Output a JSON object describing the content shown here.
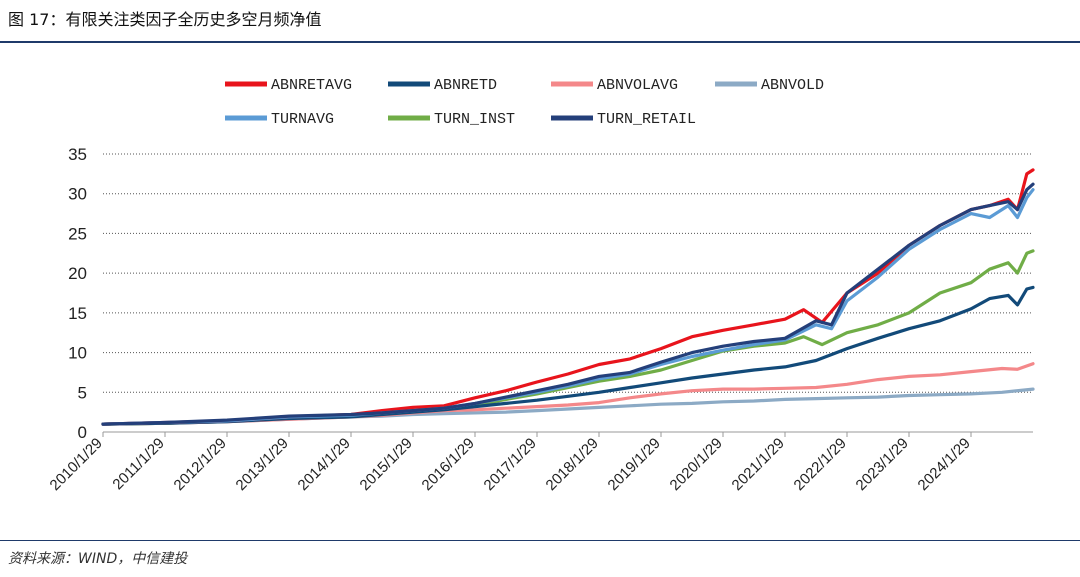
{
  "page": {
    "title": "图 17：有限关注类因子全历史多空月频净值",
    "source": "资料来源：WIND，中信建投"
  },
  "chart_data": {
    "type": "line",
    "title": "",
    "xlabel": "",
    "ylabel": "",
    "ylim": [
      0,
      35
    ],
    "yticks": [
      0,
      5,
      10,
      15,
      20,
      25,
      30,
      35
    ],
    "xlim": [
      2010.0,
      2025.0
    ],
    "x_ticks": [
      {
        "label": "2010/1/29",
        "x": 2010.0
      },
      {
        "label": "2011/1/29",
        "x": 2011.0
      },
      {
        "label": "2012/1/29",
        "x": 2012.0
      },
      {
        "label": "2013/1/29",
        "x": 2013.0
      },
      {
        "label": "2014/1/29",
        "x": 2014.0
      },
      {
        "label": "2015/1/29",
        "x": 2015.0
      },
      {
        "label": "2016/1/29",
        "x": 2016.0
      },
      {
        "label": "2017/1/29",
        "x": 2017.0
      },
      {
        "label": "2018/1/29",
        "x": 2018.0
      },
      {
        "label": "2019/1/29",
        "x": 2019.0
      },
      {
        "label": "2020/1/29",
        "x": 2020.0
      },
      {
        "label": "2021/1/29",
        "x": 2021.0
      },
      {
        "label": "2022/1/29",
        "x": 2022.0
      },
      {
        "label": "2023/1/29",
        "x": 2023.0
      },
      {
        "label": "2024/1/29",
        "x": 2024.0
      }
    ],
    "grid": "horizontal-dotted",
    "legend_position": "top",
    "series": [
      {
        "name": "ABNRETAVG",
        "color": "#e8141c",
        "points": [
          [
            2010.0,
            1.0
          ],
          [
            2011.0,
            1.2
          ],
          [
            2012.0,
            1.4
          ],
          [
            2013.0,
            1.9
          ],
          [
            2014.0,
            2.2
          ],
          [
            2014.5,
            2.7
          ],
          [
            2015.0,
            3.1
          ],
          [
            2015.5,
            3.3
          ],
          [
            2016.0,
            4.3
          ],
          [
            2016.5,
            5.2
          ],
          [
            2017.0,
            6.3
          ],
          [
            2017.5,
            7.3
          ],
          [
            2018.0,
            8.5
          ],
          [
            2018.5,
            9.2
          ],
          [
            2019.0,
            10.5
          ],
          [
            2019.5,
            12.0
          ],
          [
            2020.0,
            12.8
          ],
          [
            2020.5,
            13.5
          ],
          [
            2021.0,
            14.2
          ],
          [
            2021.3,
            15.4
          ],
          [
            2021.6,
            13.8
          ],
          [
            2022.0,
            17.5
          ],
          [
            2022.5,
            20.0
          ],
          [
            2023.0,
            23.5
          ],
          [
            2023.5,
            26.0
          ],
          [
            2024.0,
            28.0
          ],
          [
            2024.3,
            28.5
          ],
          [
            2024.6,
            29.3
          ],
          [
            2024.75,
            28.0
          ],
          [
            2024.9,
            32.5
          ],
          [
            2025.0,
            33.0
          ]
        ]
      },
      {
        "name": "ABNRETD",
        "color": "#124a79",
        "points": [
          [
            2010.0,
            1.0
          ],
          [
            2011.0,
            1.1
          ],
          [
            2012.0,
            1.3
          ],
          [
            2013.0,
            1.7
          ],
          [
            2014.0,
            1.9
          ],
          [
            2014.5,
            2.2
          ],
          [
            2015.0,
            2.5
          ],
          [
            2015.5,
            2.8
          ],
          [
            2016.0,
            3.2
          ],
          [
            2016.5,
            3.6
          ],
          [
            2017.0,
            4.0
          ],
          [
            2017.5,
            4.5
          ],
          [
            2018.0,
            5.0
          ],
          [
            2018.5,
            5.6
          ],
          [
            2019.0,
            6.2
          ],
          [
            2019.5,
            6.8
          ],
          [
            2020.0,
            7.3
          ],
          [
            2020.5,
            7.8
          ],
          [
            2021.0,
            8.2
          ],
          [
            2021.5,
            9.0
          ],
          [
            2022.0,
            10.5
          ],
          [
            2022.5,
            11.8
          ],
          [
            2023.0,
            13.0
          ],
          [
            2023.5,
            14.0
          ],
          [
            2024.0,
            15.5
          ],
          [
            2024.3,
            16.8
          ],
          [
            2024.6,
            17.2
          ],
          [
            2024.75,
            16.0
          ],
          [
            2024.9,
            18.0
          ],
          [
            2025.0,
            18.2
          ]
        ]
      },
      {
        "name": "ABNVOLAVG",
        "color": "#f4888a",
        "points": [
          [
            2010.0,
            1.0
          ],
          [
            2011.0,
            1.1
          ],
          [
            2012.0,
            1.3
          ],
          [
            2013.0,
            1.6
          ],
          [
            2014.0,
            1.9
          ],
          [
            2014.5,
            2.1
          ],
          [
            2015.0,
            2.4
          ],
          [
            2015.5,
            2.7
          ],
          [
            2016.0,
            2.8
          ],
          [
            2016.5,
            3.0
          ],
          [
            2017.0,
            3.2
          ],
          [
            2017.5,
            3.4
          ],
          [
            2018.0,
            3.7
          ],
          [
            2018.5,
            4.3
          ],
          [
            2019.0,
            4.8
          ],
          [
            2019.5,
            5.2
          ],
          [
            2020.0,
            5.4
          ],
          [
            2020.5,
            5.4
          ],
          [
            2021.0,
            5.5
          ],
          [
            2021.5,
            5.6
          ],
          [
            2022.0,
            6.0
          ],
          [
            2022.5,
            6.6
          ],
          [
            2023.0,
            7.0
          ],
          [
            2023.5,
            7.2
          ],
          [
            2024.0,
            7.6
          ],
          [
            2024.5,
            8.0
          ],
          [
            2024.75,
            7.9
          ],
          [
            2025.0,
            8.6
          ]
        ]
      },
      {
        "name": "ABNVOLD",
        "color": "#8caac5",
        "points": [
          [
            2010.0,
            1.0
          ],
          [
            2011.0,
            1.1
          ],
          [
            2012.0,
            1.3
          ],
          [
            2013.0,
            1.6
          ],
          [
            2014.0,
            1.9
          ],
          [
            2014.5,
            2.0
          ],
          [
            2015.0,
            2.2
          ],
          [
            2015.5,
            2.3
          ],
          [
            2016.0,
            2.4
          ],
          [
            2016.5,
            2.5
          ],
          [
            2017.0,
            2.7
          ],
          [
            2017.5,
            2.9
          ],
          [
            2018.0,
            3.1
          ],
          [
            2018.5,
            3.3
          ],
          [
            2019.0,
            3.5
          ],
          [
            2019.5,
            3.6
          ],
          [
            2020.0,
            3.8
          ],
          [
            2020.5,
            3.9
          ],
          [
            2021.0,
            4.1
          ],
          [
            2021.5,
            4.2
          ],
          [
            2022.0,
            4.3
          ],
          [
            2022.5,
            4.4
          ],
          [
            2023.0,
            4.6
          ],
          [
            2023.5,
            4.7
          ],
          [
            2024.0,
            4.8
          ],
          [
            2024.5,
            5.0
          ],
          [
            2025.0,
            5.4
          ]
        ]
      },
      {
        "name": "TURNAVG",
        "color": "#5b9bd5",
        "points": [
          [
            2010.0,
            1.0
          ],
          [
            2011.0,
            1.2
          ],
          [
            2012.0,
            1.4
          ],
          [
            2013.0,
            1.9
          ],
          [
            2014.0,
            2.1
          ],
          [
            2014.5,
            2.4
          ],
          [
            2015.0,
            2.7
          ],
          [
            2015.5,
            3.0
          ],
          [
            2016.0,
            3.6
          ],
          [
            2016.5,
            4.3
          ],
          [
            2017.0,
            5.0
          ],
          [
            2017.5,
            5.8
          ],
          [
            2018.0,
            6.7
          ],
          [
            2018.5,
            7.3
          ],
          [
            2019.0,
            8.5
          ],
          [
            2019.5,
            9.5
          ],
          [
            2020.0,
            10.3
          ],
          [
            2020.5,
            11.0
          ],
          [
            2021.0,
            11.6
          ],
          [
            2021.5,
            13.5
          ],
          [
            2021.75,
            13.0
          ],
          [
            2022.0,
            16.5
          ],
          [
            2022.5,
            19.5
          ],
          [
            2023.0,
            23.0
          ],
          [
            2023.5,
            25.5
          ],
          [
            2024.0,
            27.5
          ],
          [
            2024.3,
            27.0
          ],
          [
            2024.6,
            28.5
          ],
          [
            2024.75,
            27.0
          ],
          [
            2024.9,
            29.5
          ],
          [
            2025.0,
            30.5
          ]
        ]
      },
      {
        "name": "TURN_INST",
        "color": "#70ad47",
        "points": [
          [
            2010.0,
            1.0
          ],
          [
            2011.0,
            1.1
          ],
          [
            2012.0,
            1.4
          ],
          [
            2013.0,
            1.8
          ],
          [
            2014.0,
            2.1
          ],
          [
            2014.5,
            2.4
          ],
          [
            2015.0,
            2.7
          ],
          [
            2015.5,
            3.0
          ],
          [
            2016.0,
            3.4
          ],
          [
            2016.5,
            4.1
          ],
          [
            2017.0,
            4.8
          ],
          [
            2017.5,
            5.6
          ],
          [
            2018.0,
            6.4
          ],
          [
            2018.5,
            7.0
          ],
          [
            2019.0,
            7.8
          ],
          [
            2019.5,
            9.0
          ],
          [
            2020.0,
            10.2
          ],
          [
            2020.5,
            10.8
          ],
          [
            2021.0,
            11.2
          ],
          [
            2021.3,
            12.0
          ],
          [
            2021.6,
            11.0
          ],
          [
            2022.0,
            12.5
          ],
          [
            2022.5,
            13.5
          ],
          [
            2023.0,
            15.0
          ],
          [
            2023.5,
            17.5
          ],
          [
            2024.0,
            18.8
          ],
          [
            2024.3,
            20.5
          ],
          [
            2024.6,
            21.3
          ],
          [
            2024.75,
            20.0
          ],
          [
            2024.9,
            22.5
          ],
          [
            2025.0,
            22.8
          ]
        ]
      },
      {
        "name": "TURN_RETAIL",
        "color": "#243f7a",
        "points": [
          [
            2010.0,
            1.0
          ],
          [
            2011.0,
            1.2
          ],
          [
            2012.0,
            1.5
          ],
          [
            2013.0,
            2.0
          ],
          [
            2014.0,
            2.2
          ],
          [
            2014.5,
            2.4
          ],
          [
            2015.0,
            2.7
          ],
          [
            2015.5,
            3.0
          ],
          [
            2016.0,
            3.6
          ],
          [
            2016.5,
            4.4
          ],
          [
            2017.0,
            5.2
          ],
          [
            2017.5,
            6.0
          ],
          [
            2018.0,
            7.0
          ],
          [
            2018.5,
            7.5
          ],
          [
            2019.0,
            8.8
          ],
          [
            2019.5,
            10.0
          ],
          [
            2020.0,
            10.8
          ],
          [
            2020.5,
            11.4
          ],
          [
            2021.0,
            11.8
          ],
          [
            2021.5,
            14.0
          ],
          [
            2021.75,
            13.5
          ],
          [
            2022.0,
            17.5
          ],
          [
            2022.5,
            20.5
          ],
          [
            2023.0,
            23.5
          ],
          [
            2023.5,
            26.0
          ],
          [
            2024.0,
            28.0
          ],
          [
            2024.3,
            28.5
          ],
          [
            2024.6,
            29.0
          ],
          [
            2024.75,
            28.0
          ],
          [
            2024.9,
            30.5
          ],
          [
            2025.0,
            31.2
          ]
        ]
      }
    ]
  }
}
